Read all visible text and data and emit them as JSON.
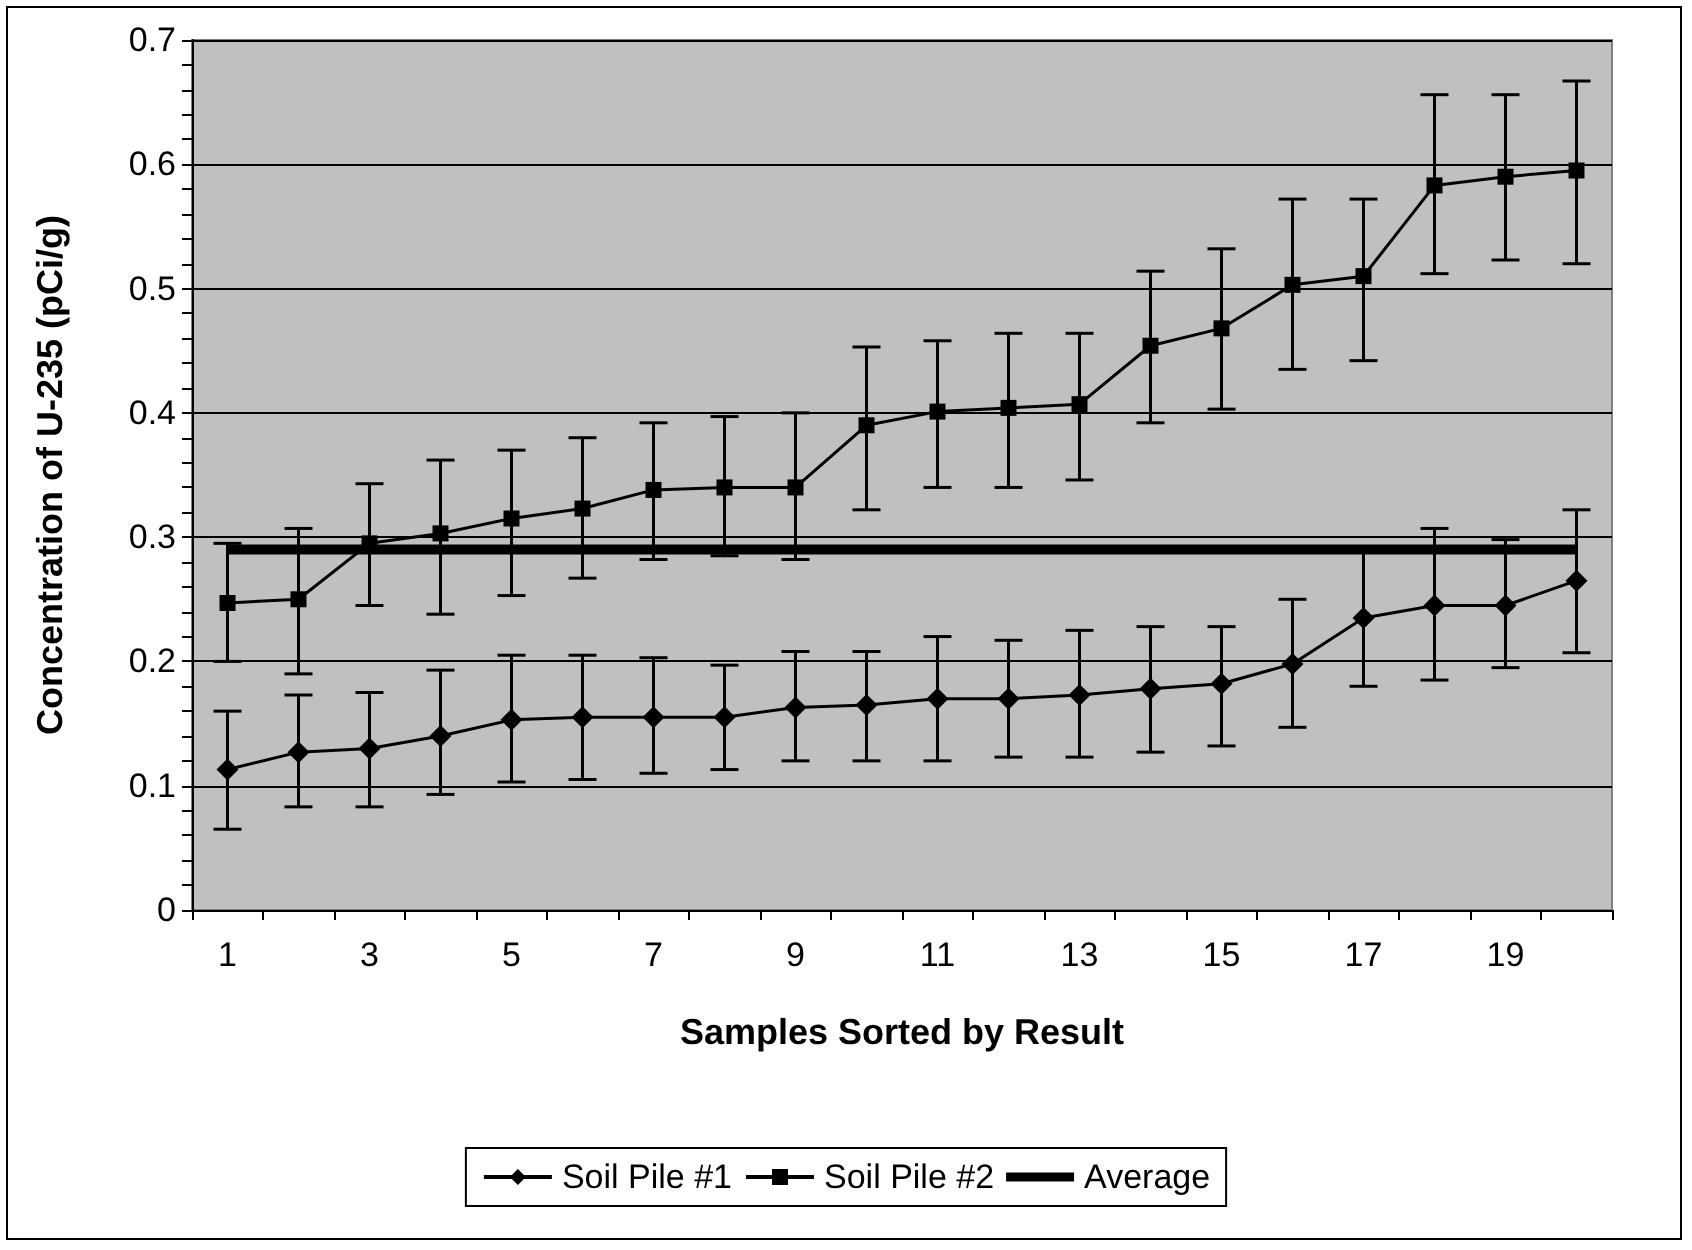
{
  "chart_data": {
    "type": "line",
    "xlabel": "Samples Sorted by Result",
    "ylabel": "Concentration of U-235 (pCi/g)",
    "x": [
      1,
      2,
      3,
      4,
      5,
      6,
      7,
      8,
      9,
      10,
      11,
      12,
      13,
      14,
      15,
      16,
      17,
      18,
      19,
      20
    ],
    "xlim": [
      0.5,
      20.5
    ],
    "xticks": [
      {
        "value": 0.5,
        "label": null
      },
      1,
      {
        "value": 1.5,
        "label": null
      },
      {
        "value": 2.5,
        "label": null
      },
      3,
      {
        "value": 3.5,
        "label": null
      },
      {
        "value": 4.5,
        "label": null
      },
      5,
      {
        "value": 5.5,
        "label": null
      },
      {
        "value": 6.5,
        "label": null
      },
      7,
      {
        "value": 7.5,
        "label": null
      },
      {
        "value": 8.5,
        "label": null
      },
      9,
      {
        "value": 9.5,
        "label": null
      },
      {
        "value": 10.5,
        "label": null
      },
      11,
      {
        "value": 11.5,
        "label": null
      },
      {
        "value": 12.5,
        "label": null
      },
      13,
      {
        "value": 13.5,
        "label": null
      },
      {
        "value": 14.5,
        "label": null
      },
      15,
      {
        "value": 15.5,
        "label": null
      },
      {
        "value": 16.5,
        "label": null
      },
      17,
      {
        "value": 17.5,
        "label": null
      },
      {
        "value": 18.5,
        "label": null
      },
      19,
      {
        "value": 19.5,
        "label": null
      },
      {
        "value": 20.5,
        "label": null
      }
    ],
    "ylim": [
      0,
      0.7
    ],
    "yticks": [
      0,
      0.1,
      0.2,
      0.3,
      0.4,
      0.5,
      0.6,
      0.7
    ],
    "grid": "y",
    "legend": "bottom",
    "series": [
      {
        "name": "Soil Pile #1",
        "color": "#000000",
        "marker": "diamond",
        "values": [
          0.113,
          0.127,
          0.13,
          0.14,
          0.153,
          0.155,
          0.155,
          0.155,
          0.163,
          0.165,
          0.17,
          0.17,
          0.173,
          0.178,
          0.182,
          0.198,
          0.235,
          0.245,
          0.245,
          0.265
        ],
        "errors": [
          [
            0.065,
            0.16
          ],
          [
            0.083,
            0.173
          ],
          [
            0.083,
            0.175
          ],
          [
            0.093,
            0.193
          ],
          [
            0.103,
            0.205
          ],
          [
            0.105,
            0.205
          ],
          [
            0.11,
            0.203
          ],
          [
            0.113,
            0.197
          ],
          [
            0.12,
            0.208
          ],
          [
            0.12,
            0.208
          ],
          [
            0.12,
            0.22
          ],
          [
            0.123,
            0.217
          ],
          [
            0.123,
            0.225
          ],
          [
            0.127,
            0.228
          ],
          [
            0.132,
            0.228
          ],
          [
            0.147,
            0.25
          ],
          [
            0.18,
            0.29
          ],
          [
            0.185,
            0.307
          ],
          [
            0.195,
            0.298
          ],
          [
            0.207,
            0.322
          ]
        ]
      },
      {
        "name": "Soil Pile #2",
        "color": "#000000",
        "marker": "square",
        "values": [
          0.247,
          0.25,
          0.295,
          0.303,
          0.315,
          0.323,
          0.338,
          0.34,
          0.34,
          0.39,
          0.401,
          0.404,
          0.407,
          0.454,
          0.468,
          0.503,
          0.51,
          0.583,
          0.59,
          0.595
        ],
        "errors": [
          [
            0.2,
            0.295
          ],
          [
            0.19,
            0.307
          ],
          [
            0.245,
            0.343
          ],
          [
            0.238,
            0.362
          ],
          [
            0.253,
            0.37
          ],
          [
            0.267,
            0.38
          ],
          [
            0.282,
            0.392
          ],
          [
            0.285,
            0.397
          ],
          [
            0.282,
            0.4
          ],
          [
            0.322,
            0.453
          ],
          [
            0.34,
            0.458
          ],
          [
            0.34,
            0.464
          ],
          [
            0.346,
            0.464
          ],
          [
            0.392,
            0.514
          ],
          [
            0.403,
            0.532
          ],
          [
            0.435,
            0.572
          ],
          [
            0.442,
            0.572
          ],
          [
            0.512,
            0.656
          ],
          [
            0.523,
            0.656
          ],
          [
            0.52,
            0.667
          ]
        ]
      },
      {
        "name": "Average",
        "color": "#000000",
        "marker": "none",
        "values": [
          0.29,
          0.29,
          0.29,
          0.29,
          0.29,
          0.29,
          0.29,
          0.29,
          0.29,
          0.29,
          0.29,
          0.29,
          0.29,
          0.29,
          0.29,
          0.29,
          0.29,
          0.29,
          0.29,
          0.29
        ]
      }
    ]
  }
}
